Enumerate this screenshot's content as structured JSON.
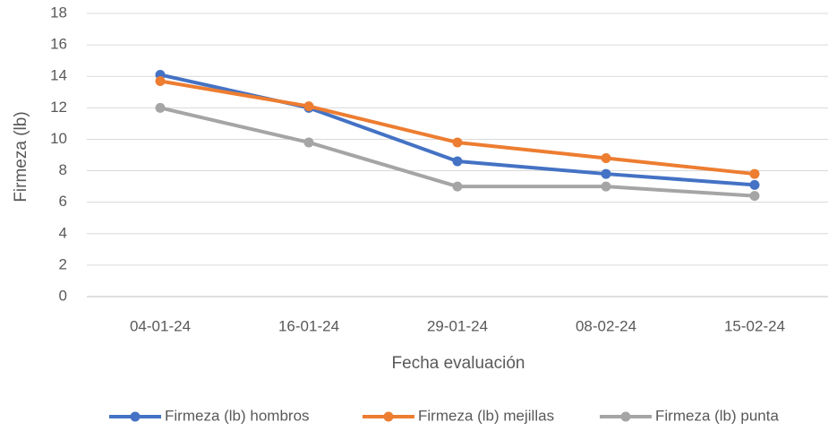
{
  "chart_data": {
    "type": "line",
    "x_label": "Fecha evaluación",
    "y_label": "Firmeza (lb)",
    "categories": [
      "04-01-24",
      "16-01-24",
      "29-01-24",
      "08-02-24",
      "15-02-24"
    ],
    "series": [
      {
        "name": "Firmeza (lb) hombros",
        "color": "#4472c4",
        "values": [
          14.1,
          12.0,
          8.6,
          7.8,
          7.1
        ]
      },
      {
        "name": "Firmeza (lb) mejillas",
        "color": "#ed7d31",
        "values": [
          13.7,
          12.1,
          9.8,
          8.8,
          7.8
        ]
      },
      {
        "name": "Firmeza (lb) punta",
        "color": "#a5a5a5",
        "values": [
          12.0,
          9.8,
          7.0,
          7.0,
          6.4
        ]
      }
    ],
    "ylim": [
      0,
      18
    ],
    "yticks": [
      0,
      2,
      4,
      6,
      8,
      10,
      12,
      14,
      16,
      18
    ],
    "grid": true,
    "legend": "bottom"
  }
}
